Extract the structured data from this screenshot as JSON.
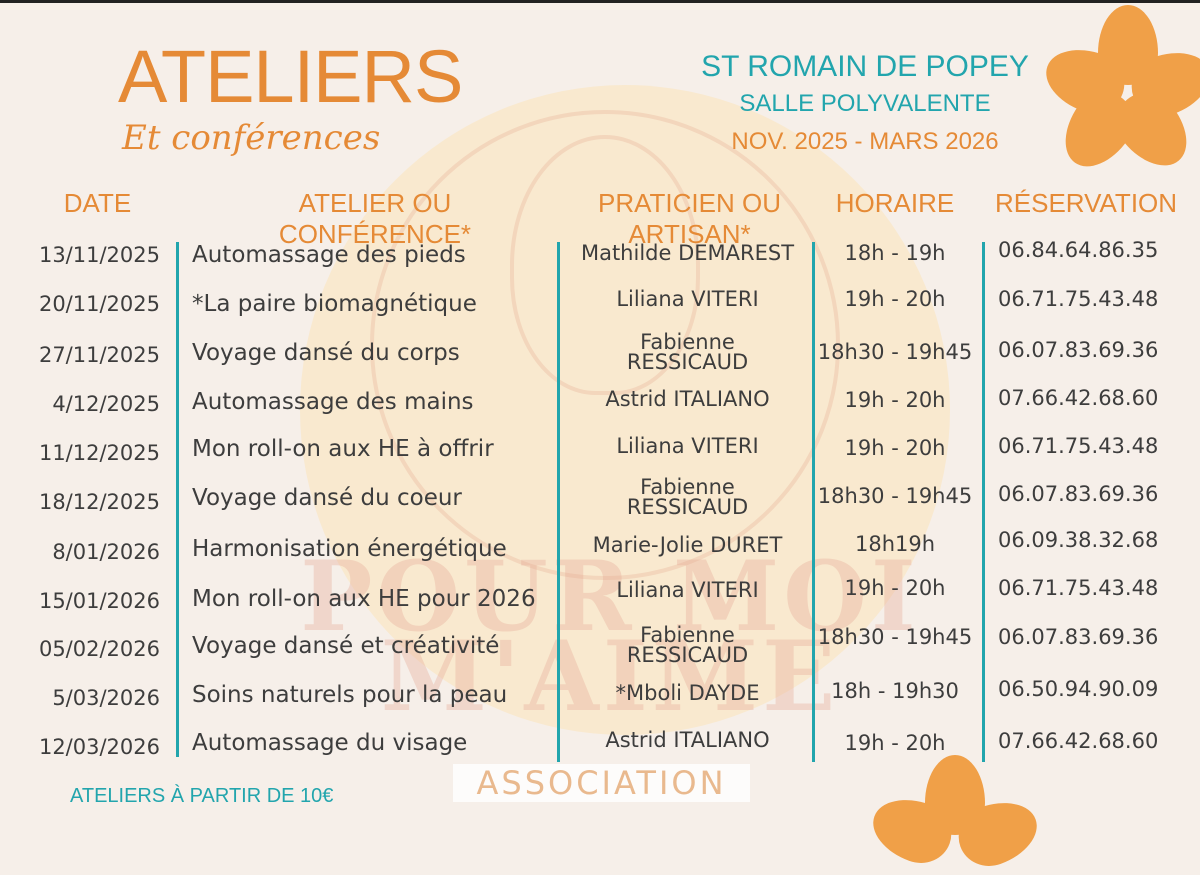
{
  "header": {
    "title": "ATELIERS",
    "subtitle": "Et conférences",
    "location": "ST ROMAIN DE POPEY",
    "venue": "SALLE POLYVALENTE",
    "period": "NOV. 2025 - MARS 2026"
  },
  "columns": {
    "date": "DATE",
    "workshop": "ATELIER OU CONFÉRENCE*",
    "practitioner": "PRATICIEN OU ARTISAN*",
    "time": "HORAIRE",
    "reservation": "RÉSERVATION"
  },
  "rows": [
    {
      "date": "13/11/2025",
      "title": "Automassage des pieds",
      "practitioner": "Mathilde DEMAREST",
      "time": "18h - 19h",
      "phone": "06.84.64.86.35"
    },
    {
      "date": "20/11/2025",
      "title": "*La paire biomagnétique",
      "practitioner": "Liliana VITERI",
      "time": "19h - 20h",
      "phone": "06.71.75.43.48"
    },
    {
      "date": "27/11/2025",
      "title": "Voyage dansé du corps",
      "practitioner": "Fabienne",
      "practitioner2": "RESSICAUD",
      "time": "18h30 - 19h45",
      "phone": "06.07.83.69.36"
    },
    {
      "date": "4/12/2025",
      "title": "Automassage des mains",
      "practitioner": "Astrid ITALIANO",
      "time": "19h - 20h",
      "phone": "07.66.42.68.60"
    },
    {
      "date": "11/12/2025",
      "title": "Mon roll-on aux HE à offrir",
      "practitioner": "Liliana VITERI",
      "time": "19h - 20h",
      "phone": "06.71.75.43.48"
    },
    {
      "date": "18/12/2025",
      "title": "Voyage dansé du coeur",
      "practitioner": "Fabienne",
      "practitioner2": "RESSICAUD",
      "time": "18h30 - 19h45",
      "phone": "06.07.83.69.36"
    },
    {
      "date": "8/01/2026",
      "title": "Harmonisation énergétique",
      "practitioner": "Marie-Jolie DURET",
      "time": "18h19h",
      "phone": "06.09.38.32.68"
    },
    {
      "date": "15/01/2026",
      "title": "Mon roll-on aux HE pour 2026",
      "practitioner": "Liliana VITERI",
      "time": "19h - 20h",
      "phone": "06.71.75.43.48"
    },
    {
      "date": "05/02/2026",
      "title": "Voyage dansé et créativité",
      "practitioner": "Fabienne",
      "practitioner2": "RESSICAUD",
      "time": "18h30 - 19h45",
      "phone": "06.07.83.69.36"
    },
    {
      "date": "5/03/2026",
      "title": "Soins naturels pour la peau",
      "practitioner": "*Mboli DAYDE",
      "time": "18h - 19h30",
      "phone": "06.50.94.90.09"
    },
    {
      "date": "12/03/2026",
      "title": "Automassage du visage",
      "practitioner": "Astrid ITALIANO",
      "time": "19h - 20h",
      "phone": "07.66.42.68.60"
    }
  ],
  "footer": {
    "price": "ATELIERS À PARTIR DE 10€",
    "association": "ASSOCIATION"
  },
  "watermark": {
    "line1": "POUR MOI",
    "line2": "M'AIME"
  },
  "colors": {
    "orange": "#e58a36",
    "teal": "#22a5ad",
    "background": "#f6efe9"
  }
}
